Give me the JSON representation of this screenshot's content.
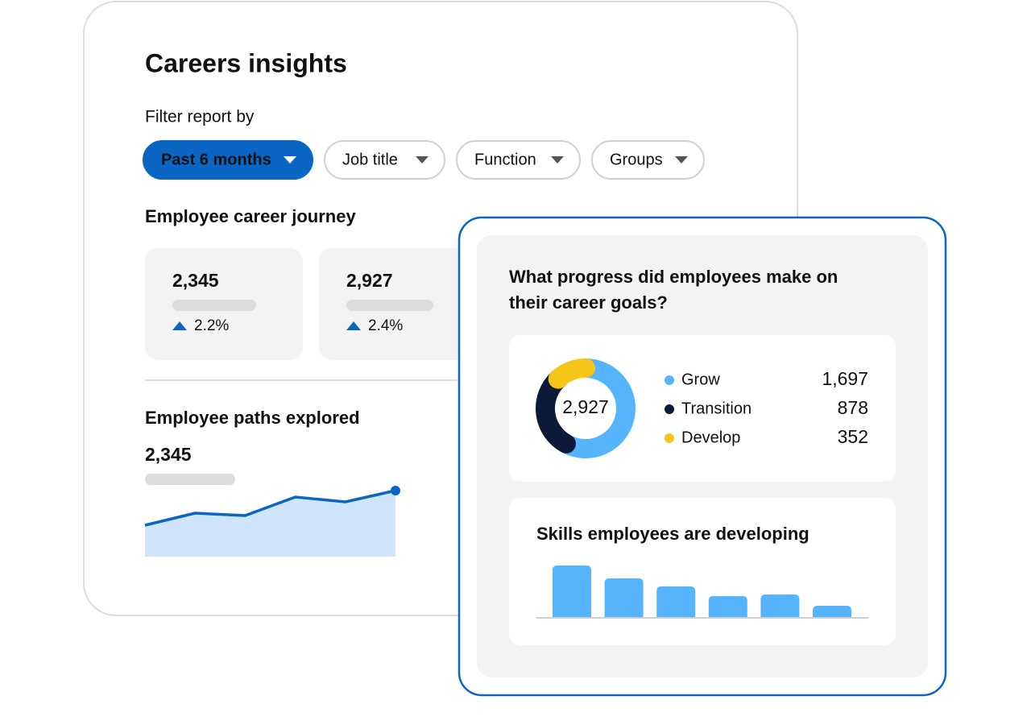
{
  "header": {
    "title": "Careers insights"
  },
  "filters": {
    "label": "Filter report by",
    "options": [
      "Past 6 months",
      "Job title",
      "Function",
      "Groups"
    ]
  },
  "career_journey": {
    "title": "Employee career journey",
    "cards": [
      {
        "value": "2,345",
        "change": "2.2%"
      },
      {
        "value": "2,927",
        "change": "2.4%"
      }
    ]
  },
  "paths_explored": {
    "title": "Employee paths explored",
    "total": "2,345",
    "chart_data": {
      "type": "area",
      "values": [
        39,
        54,
        51,
        74,
        68,
        82
      ],
      "ylim": [
        0,
        100
      ],
      "color": "#0a66c2",
      "fill": "#cfe5fb"
    }
  },
  "progress": {
    "title": "What progress did employees make on their career goals?",
    "chart_data": {
      "type": "donut",
      "center_label": "2,927",
      "series": [
        {
          "name": "Grow",
          "color": "#56b4fc",
          "value": {
            "value": 1697,
            "label": "1,697"
          }
        },
        {
          "name": "Transition",
          "color": "#0b1a36",
          "value": {
            "value": 878,
            "label": "878"
          }
        },
        {
          "name": "Develop",
          "color": "#f5c518",
          "value": {
            "value": 352,
            "label": "352"
          }
        }
      ]
    }
  },
  "skills": {
    "title": "Skills employees are developing",
    "chart_data": {
      "type": "bar",
      "values": [
        64,
        48,
        38,
        26,
        28,
        14
      ],
      "ylim": [
        0,
        100
      ],
      "color": "#56b4fc"
    }
  }
}
